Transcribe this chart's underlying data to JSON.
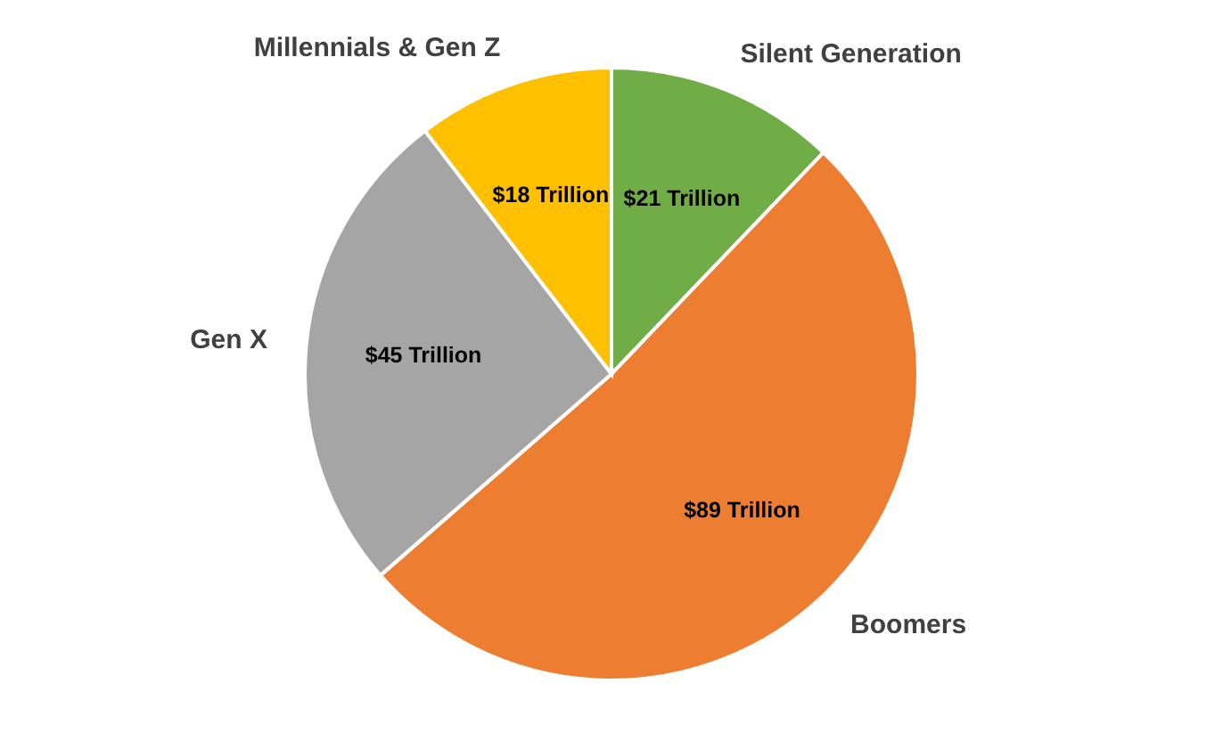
{
  "chart_data": {
    "type": "pie",
    "categories": [
      "Silent Generation",
      "Boomers",
      "Gen X",
      "Millennials & Gen Z"
    ],
    "values": [
      21,
      89,
      45,
      18
    ],
    "colors": [
      "#70ad47",
      "#ed7d31",
      "#a5a5a5",
      "#ffc000"
    ],
    "value_labels": [
      "$21 Trillion",
      "$89 Trillion",
      "$45 Trillion",
      "$18 Trillion"
    ]
  }
}
